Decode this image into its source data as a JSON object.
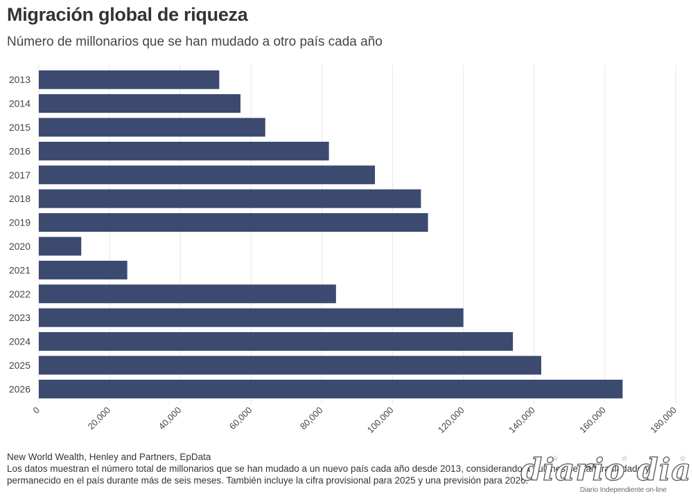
{
  "header": {
    "title": "Migración global de riqueza",
    "subtitle": "Número de millonarios que se han mudado a otro país cada año"
  },
  "chart_data": {
    "type": "bar",
    "orientation": "horizontal",
    "categories": [
      "2013",
      "2014",
      "2015",
      "2016",
      "2017",
      "2018",
      "2019",
      "2020",
      "2021",
      "2022",
      "2023",
      "2024",
      "2025",
      "2026"
    ],
    "values": [
      51000,
      57000,
      64000,
      82000,
      95000,
      108000,
      110000,
      12000,
      25000,
      84000,
      120000,
      134000,
      142000,
      165000
    ],
    "xlim": [
      0,
      180000
    ],
    "xticks": [
      0,
      20000,
      40000,
      60000,
      80000,
      100000,
      120000,
      140000,
      160000,
      180000
    ],
    "xtick_labels": [
      "0",
      "20,000",
      "40,000",
      "60,000",
      "80,000",
      "100,000",
      "120,000",
      "140,000",
      "160,000",
      "180,000"
    ],
    "grid": true,
    "bar_color": "#3b4a6e"
  },
  "footer": {
    "source": "New World Wealth, Henley and Partners, EpData",
    "note": "Los datos muestran el número total de millonarios que se han mudado a un nuevo país cada año desde 2013, considerando a quienes se han trasladado y permanecido en el país durante más de seis meses. También incluye la cifra provisional para 2025 y una previsión para 2026."
  },
  "watermark": {
    "logo": "diario dia",
    "tagline": "Diario Independiente on-line"
  }
}
